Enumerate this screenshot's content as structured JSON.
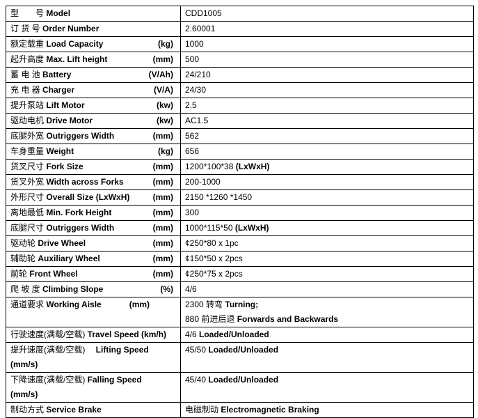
{
  "rows": [
    {
      "cn": "型　　号",
      "en": "Model",
      "unit": "",
      "value": [
        [
          "CDD1005",
          false
        ]
      ]
    },
    {
      "cn": "订 货 号",
      "en": "Order Number",
      "unit": "",
      "value": [
        [
          "2.60001",
          false
        ]
      ]
    },
    {
      "cn": "额定载重",
      "en": "Load Capacity",
      "unit": "(kg)",
      "value": [
        [
          "1000",
          false
        ]
      ]
    },
    {
      "cn": "起升高度",
      "en": "Max. Lift height",
      "unit": "(mm)",
      "value": [
        [
          "500",
          false
        ]
      ]
    },
    {
      "cn": "蓄 电 池",
      "en": "Battery",
      "unit": "(V/Ah)",
      "value": [
        [
          "24/210",
          false
        ]
      ]
    },
    {
      "cn": "充 电 器",
      "en": "Charger",
      "unit": "(V/A)",
      "value": [
        [
          "24/30",
          false
        ]
      ]
    },
    {
      "cn": "提升泵站",
      "en": "Lift Motor",
      "unit": "(kw)",
      "value": [
        [
          "2.5",
          false
        ]
      ]
    },
    {
      "cn": "驱动电机",
      "en": "Drive Motor",
      "unit": "(kw)",
      "value": [
        [
          "AC1.5",
          false
        ]
      ]
    },
    {
      "cn": "底腿外宽",
      "en": "Outriggers Width",
      "unit": "(mm)",
      "value": [
        [
          "562",
          false
        ]
      ]
    },
    {
      "cn": "车身重量",
      "en": "Weight",
      "unit": "(kg)",
      "value": [
        [
          "656",
          false
        ]
      ]
    },
    {
      "cn": "货叉尺寸",
      "en": "Fork Size",
      "unit": "(mm)",
      "value": [
        [
          "1200*100*38 ",
          false
        ],
        [
          "(LxWxH)",
          true
        ]
      ]
    },
    {
      "cn": "货叉外宽",
      "en": " Width across Forks",
      "unit": "(mm)",
      "value": [
        [
          "200-1000",
          false
        ]
      ]
    },
    {
      "cn": "外形尺寸",
      "en": "Overall Size (LxWxH)",
      "unit": "(mm)",
      "value": [
        [
          "2150 *1260 *1450",
          false
        ]
      ]
    },
    {
      "cn": "离地最低",
      "en": "Min. Fork Height",
      "unit": "(mm)",
      "value": [
        [
          "300",
          false
        ]
      ]
    },
    {
      "cn": "底腿尺寸",
      "en": " Outriggers Width",
      "unit": "(mm)",
      "value": [
        [
          "1000*115*50 ",
          false
        ],
        [
          "(LxWxH)",
          true
        ]
      ]
    },
    {
      "cn": "驱动轮",
      "en": " Drive Wheel",
      "unit": "(mm)",
      "value": [
        [
          "¢250*80 x 1pc",
          false
        ]
      ]
    },
    {
      "cn": "辅助轮",
      "en": "Auxiliary Wheel",
      "unit": "(mm)",
      "value": [
        [
          "¢150*50 x 2pcs",
          false
        ]
      ]
    },
    {
      "cn": "前轮",
      "en": "Front Wheel",
      "unit": "(mm)",
      "value": [
        [
          "¢250*75 x 2pcs",
          false
        ]
      ]
    },
    {
      "cn": "爬 坡 度",
      "en": " Climbing Slope",
      "unit": "(%)",
      "value": [
        [
          "4/6",
          false
        ]
      ]
    },
    {
      "cn": "通道要求",
      "en": " Working Aisle",
      "unit_inline": "(mm)",
      "value": [
        [
          "2300 转弯 ",
          false
        ],
        [
          "Turning;",
          true
        ]
      ],
      "value2": [
        [
          "880 前进后退 ",
          false
        ],
        [
          "Forwards and Backwards",
          true
        ]
      ]
    },
    {
      "cn": "行驶速度(满载/空载)",
      "en": "Travel Speed (km/h)",
      "unit": "",
      "value": [
        [
          "4/6 ",
          false
        ],
        [
          "Loaded/Unloaded",
          true
        ]
      ]
    },
    {
      "cn": "提升速度(满载/空载)",
      "en": "　Lifting Speed",
      "line2": "(mm/s)",
      "unit": "",
      "value": [
        [
          "45/50 ",
          false
        ],
        [
          "Loaded/Unloaded",
          true
        ]
      ]
    },
    {
      "cn": "下降速度(满载/空载)",
      "en": "Falling Speed",
      "line2": "(mm/s)",
      "unit": "",
      "value": [
        [
          "45/40 ",
          false
        ],
        [
          "Loaded/Unloaded",
          true
        ]
      ]
    },
    {
      "cn": "制动方式",
      "en": "Service Brake",
      "unit": "",
      "value": [
        [
          "电磁制动 ",
          false
        ],
        [
          "Electromagnetic Braking",
          true
        ]
      ]
    }
  ]
}
